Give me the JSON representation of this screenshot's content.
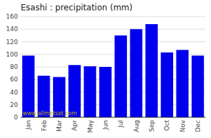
{
  "chart_data": {
    "type": "bar",
    "title": "Esashi : precipitation (mm)",
    "categories": [
      "Jan",
      "Feb",
      "Mar",
      "Apr",
      "May",
      "Jun",
      "Jul",
      "Aug",
      "Sep",
      "Oct",
      "Nov",
      "Dec"
    ],
    "values": [
      98,
      66,
      64,
      83,
      81,
      80,
      130,
      140,
      148,
      103,
      107,
      98
    ],
    "color": "#0000ee",
    "ylim": [
      0,
      160
    ],
    "yticks": [
      0,
      20,
      40,
      60,
      80,
      100,
      120,
      140,
      160
    ],
    "grid": true,
    "annotations": [
      "www.allmetsat.com"
    ]
  }
}
